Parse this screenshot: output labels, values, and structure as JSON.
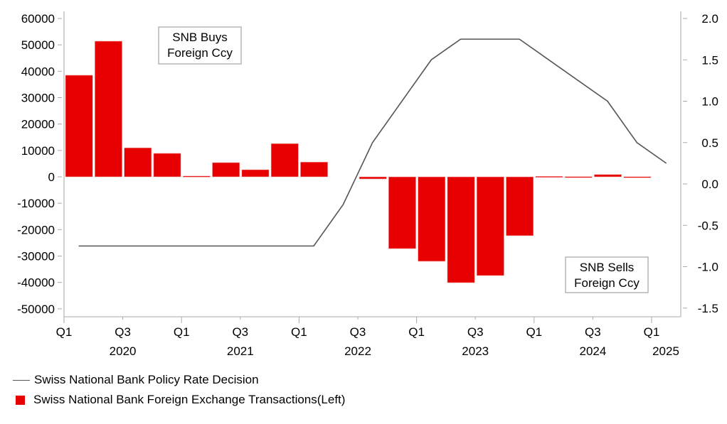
{
  "chart_data": {
    "type": "bar",
    "title": "",
    "xlabel": "",
    "ylabel": "",
    "ylabel_right": "",
    "grid": false,
    "legend_placement": "bottom-left",
    "categories": [
      "Q1 2020",
      "Q2 2020",
      "Q3 2020",
      "Q4 2020",
      "Q1 2021",
      "Q2 2021",
      "Q3 2021",
      "Q4 2021",
      "Q1 2022",
      "Q2 2022",
      "Q3 2022",
      "Q4 2022",
      "Q1 2023",
      "Q2 2023",
      "Q3 2023",
      "Q4 2023",
      "Q1 2024",
      "Q2 2024",
      "Q3 2024",
      "Q4 2024",
      "Q1 2025"
    ],
    "x_ticks": [
      {
        "label": "Q1",
        "year": "2020"
      },
      {
        "label": "Q3",
        "year": ""
      },
      {
        "label": "Q1",
        "year": "2021"
      },
      {
        "label": "Q3",
        "year": ""
      },
      {
        "label": "Q1",
        "year": "2022"
      },
      {
        "label": "Q3",
        "year": ""
      },
      {
        "label": "Q1",
        "year": "2023"
      },
      {
        "label": "Q3",
        "year": ""
      },
      {
        "label": "Q1",
        "year": "2024"
      },
      {
        "label": "Q3",
        "year": ""
      },
      {
        "label": "Q1",
        "year": "2025"
      }
    ],
    "x_tick_labels": [
      "Q1",
      "Q3",
      "Q1",
      "Q3",
      "Q1",
      "Q3",
      "Q1",
      "Q3",
      "Q1",
      "Q3",
      "Q1"
    ],
    "x_year_labels": [
      "2020",
      "2021",
      "2022",
      "2023",
      "2024",
      "2025"
    ],
    "y_left": {
      "range": [
        -53000,
        63000
      ],
      "ticks": [
        60000,
        50000,
        40000,
        30000,
        20000,
        10000,
        0,
        -10000,
        -20000,
        -30000,
        -40000,
        -50000
      ]
    },
    "y_right": {
      "range": [
        -1.55,
        2.1
      ],
      "ticks": [
        "2.0",
        "1.5",
        "1.0",
        "0.5",
        "0.0",
        "-0.5",
        "-1.0",
        "-1.5"
      ]
    },
    "series": [
      {
        "name": "Swiss National Bank Foreign Exchange Transactions(Left)",
        "type": "bar",
        "axis": "left",
        "color": "#e60000",
        "values": [
          38500,
          51400,
          11000,
          8900,
          300,
          5400,
          2700,
          12600,
          5600,
          null,
          -800,
          -27200,
          -32000,
          -40100,
          -37400,
          -22300,
          200,
          100,
          900,
          50,
          null
        ]
      },
      {
        "name": "Swiss National Bank Policy Rate Decision",
        "type": "line",
        "axis": "right",
        "color": "#555555",
        "points": [
          {
            "q": 0.5,
            "v": -0.75
          },
          {
            "q": 8.5,
            "v": -0.75
          },
          {
            "q": 9.5,
            "v": -0.25
          },
          {
            "q": 10.5,
            "v": 0.5
          },
          {
            "q": 12.5,
            "v": 1.5
          },
          {
            "q": 13.5,
            "v": 1.75
          },
          {
            "q": 15.5,
            "v": 1.75
          },
          {
            "q": 18.5,
            "v": 1.0
          },
          {
            "q": 19.5,
            "v": 0.5
          },
          {
            "q": 20.5,
            "v": 0.25
          }
        ]
      }
    ],
    "annotations": [
      {
        "lines": [
          "SNB Buys",
          "Foreign Ccy"
        ],
        "position": "upper-left"
      },
      {
        "lines": [
          "SNB Sells",
          "Foreign Ccy"
        ],
        "position": "lower-right"
      }
    ]
  },
  "legend": {
    "line_label": "Swiss National Bank Policy Rate Decision",
    "bar_label": "Swiss National Bank Foreign Exchange Transactions(Left)"
  }
}
